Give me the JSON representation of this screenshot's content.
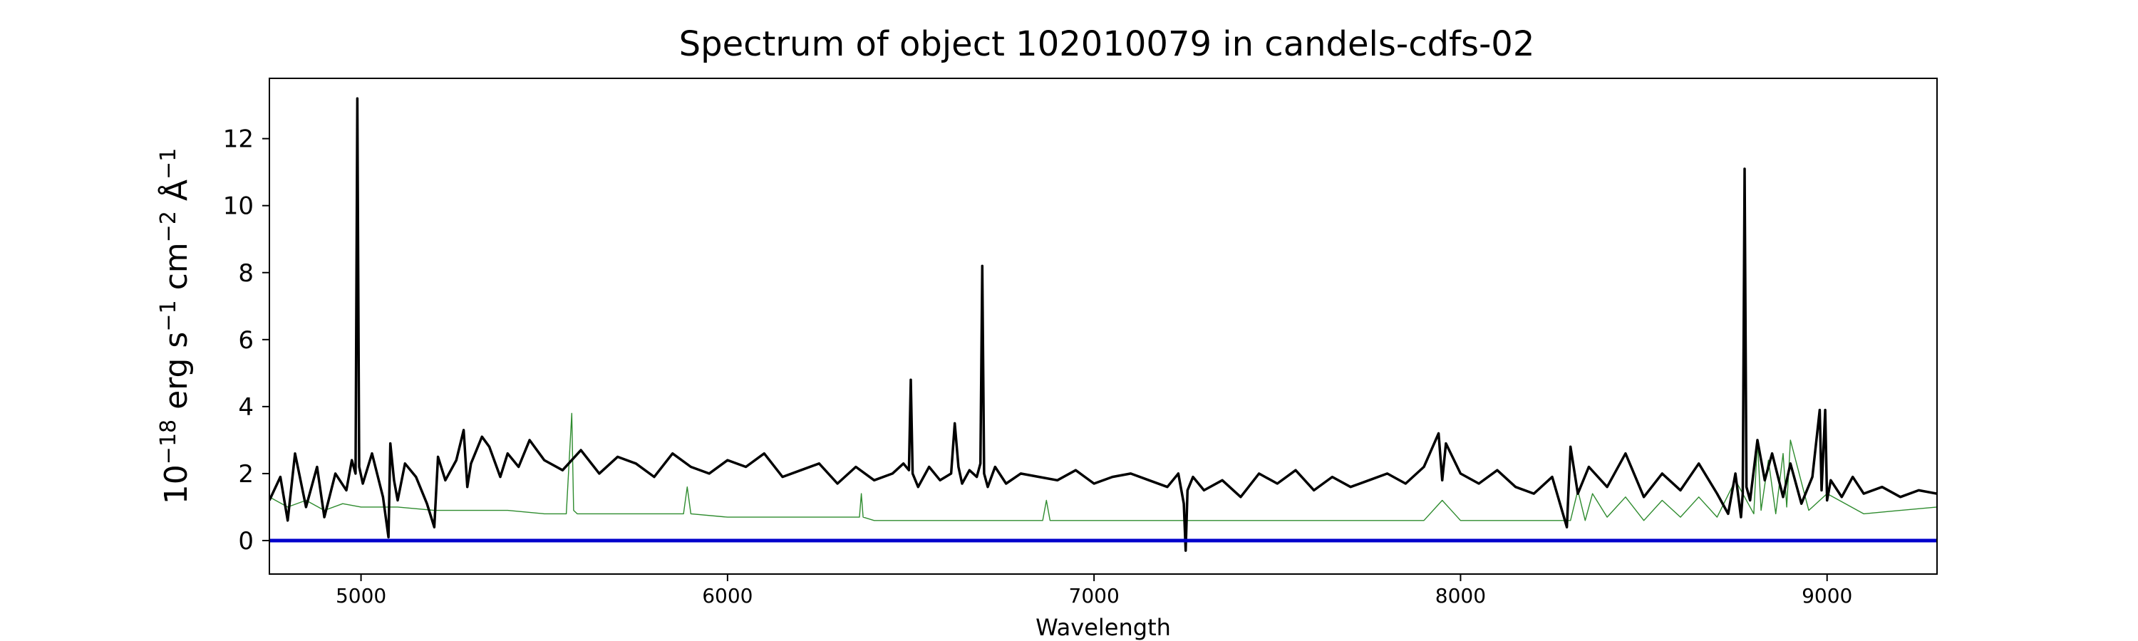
{
  "chart_data": {
    "type": "line",
    "title": "Spectrum of object 102010079 in candels-cdfs-02",
    "xlabel": "Wavelength",
    "ylabel_parts": {
      "base1": "10",
      "exp1": "−18",
      "mid1": " erg s",
      "exp2": "−1",
      "mid2": " cm",
      "exp3": "−2",
      "mid3": " Å",
      "exp4": "−1"
    },
    "xlim": [
      4750,
      9300
    ],
    "ylim": [
      -1.0,
      13.8
    ],
    "xticks": [
      5000,
      6000,
      7000,
      8000,
      9000
    ],
    "xtick_labels": [
      "5000",
      "6000",
      "7000",
      "8000",
      "9000"
    ],
    "yticks": [
      0,
      2,
      4,
      6,
      8,
      10,
      12
    ],
    "ytick_labels": [
      "0",
      "2",
      "4",
      "6",
      "8",
      "10",
      "12"
    ],
    "grid": false,
    "colors": {
      "flux": "#000000",
      "error": "#2e8b2e",
      "zero": "#0000cc"
    },
    "series": [
      {
        "role": "flux",
        "x": [
          4750,
          4780,
          4800,
          4820,
          4850,
          4880,
          4900,
          4930,
          4960,
          4975,
          4985,
          4990,
          4995,
          5005,
          5030,
          5060,
          5075,
          5080,
          5090,
          5100,
          5120,
          5150,
          5180,
          5200,
          5210,
          5230,
          5260,
          5280,
          5290,
          5300,
          5330,
          5350,
          5380,
          5400,
          5430,
          5460,
          5500,
          5550,
          5600,
          5650,
          5700,
          5750,
          5800,
          5850,
          5900,
          5950,
          6000,
          6050,
          6100,
          6150,
          6200,
          6250,
          6300,
          6350,
          6400,
          6450,
          6480,
          6495,
          6500,
          6505,
          6520,
          6550,
          6580,
          6610,
          6620,
          6630,
          6640,
          6660,
          6680,
          6690,
          6695,
          6700,
          6710,
          6730,
          6760,
          6800,
          6850,
          6900,
          6950,
          7000,
          7050,
          7100,
          7150,
          7200,
          7230,
          7245,
          7250,
          7255,
          7270,
          7300,
          7350,
          7400,
          7450,
          7500,
          7550,
          7600,
          7650,
          7700,
          7750,
          7800,
          7850,
          7900,
          7940,
          7950,
          7960,
          8000,
          8050,
          8100,
          8150,
          8200,
          8250,
          8290,
          8300,
          8320,
          8350,
          8400,
          8450,
          8500,
          8550,
          8600,
          8650,
          8700,
          8730,
          8750,
          8765,
          8770,
          8775,
          8780,
          8790,
          8810,
          8830,
          8850,
          8880,
          8900,
          8930,
          8960,
          8980,
          8985,
          8995,
          9000,
          9010,
          9040,
          9070,
          9100,
          9150,
          9200,
          9250,
          9300
        ],
        "y": [
          1.2,
          1.9,
          0.6,
          2.6,
          1.0,
          2.2,
          0.7,
          2.0,
          1.5,
          2.4,
          2.0,
          13.2,
          2.2,
          1.7,
          2.6,
          1.3,
          0.1,
          2.9,
          1.8,
          1.2,
          2.3,
          1.9,
          1.1,
          0.4,
          2.5,
          1.8,
          2.4,
          3.3,
          1.6,
          2.3,
          3.1,
          2.8,
          1.9,
          2.6,
          2.2,
          3.0,
          2.4,
          2.1,
          2.7,
          2.0,
          2.5,
          2.3,
          1.9,
          2.6,
          2.2,
          2.0,
          2.4,
          2.2,
          2.6,
          1.9,
          2.1,
          2.3,
          1.7,
          2.2,
          1.8,
          2.0,
          2.3,
          2.1,
          4.8,
          2.0,
          1.6,
          2.2,
          1.8,
          2.0,
          3.5,
          2.2,
          1.7,
          2.1,
          1.9,
          2.3,
          8.2,
          2.0,
          1.6,
          2.2,
          1.7,
          2.0,
          1.9,
          1.8,
          2.1,
          1.7,
          1.9,
          2.0,
          1.8,
          1.6,
          2.0,
          1.1,
          -0.3,
          1.5,
          1.9,
          1.5,
          1.8,
          1.3,
          2.0,
          1.7,
          2.1,
          1.5,
          1.9,
          1.6,
          1.8,
          2.0,
          1.7,
          2.2,
          3.2,
          1.8,
          2.9,
          2.0,
          1.7,
          2.1,
          1.6,
          1.4,
          1.9,
          0.4,
          2.8,
          1.4,
          2.2,
          1.6,
          2.6,
          1.3,
          2.0,
          1.5,
          2.3,
          1.4,
          0.8,
          2.0,
          0.7,
          1.4,
          11.1,
          1.6,
          1.2,
          3.0,
          1.8,
          2.6,
          1.3,
          2.3,
          1.1,
          1.9,
          3.9,
          1.5,
          3.9,
          1.2,
          1.8,
          1.3,
          1.9,
          1.4,
          1.6,
          1.3,
          1.5,
          1.4
        ]
      },
      {
        "role": "error",
        "x": [
          4750,
          4800,
          4850,
          4900,
          4950,
          5000,
          5100,
          5200,
          5300,
          5400,
          5500,
          5560,
          5575,
          5580,
          5590,
          5650,
          5700,
          5800,
          5880,
          5890,
          5900,
          6000,
          6100,
          6200,
          6300,
          6360,
          6365,
          6370,
          6400,
          6500,
          6600,
          6700,
          6800,
          6860,
          6870,
          6880,
          6950,
          7000,
          7100,
          7200,
          7300,
          7400,
          7500,
          7600,
          7700,
          7800,
          7900,
          7950,
          8000,
          8100,
          8200,
          8300,
          8320,
          8340,
          8360,
          8400,
          8450,
          8500,
          8550,
          8600,
          8650,
          8700,
          8750,
          8800,
          8810,
          8820,
          8840,
          8860,
          8880,
          8890,
          8900,
          8950,
          9000,
          9100,
          9200,
          9300
        ],
        "y": [
          1.3,
          1.0,
          1.2,
          0.9,
          1.1,
          1.0,
          1.0,
          0.9,
          0.9,
          0.9,
          0.8,
          0.8,
          3.8,
          0.9,
          0.8,
          0.8,
          0.8,
          0.8,
          0.8,
          1.6,
          0.8,
          0.7,
          0.7,
          0.7,
          0.7,
          0.7,
          1.4,
          0.7,
          0.6,
          0.6,
          0.6,
          0.6,
          0.6,
          0.6,
          1.2,
          0.6,
          0.6,
          0.6,
          0.6,
          0.6,
          0.6,
          0.6,
          0.6,
          0.6,
          0.6,
          0.6,
          0.6,
          1.2,
          0.6,
          0.6,
          0.6,
          0.6,
          1.5,
          0.6,
          1.4,
          0.7,
          1.3,
          0.6,
          1.2,
          0.7,
          1.3,
          0.7,
          1.8,
          0.8,
          3.0,
          0.9,
          2.4,
          0.8,
          2.6,
          1.0,
          3.0,
          0.9,
          1.4,
          0.8,
          0.9,
          1.0
        ]
      },
      {
        "role": "zero",
        "x": [
          4750,
          9300
        ],
        "y": [
          0,
          0
        ]
      }
    ]
  }
}
